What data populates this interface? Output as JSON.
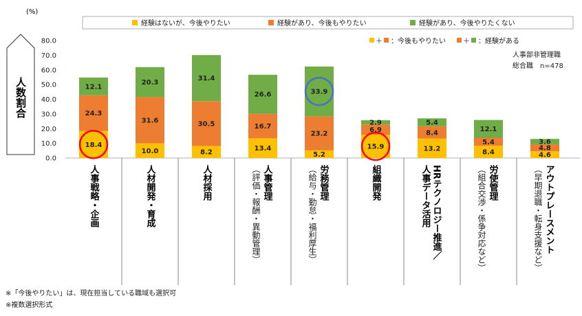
{
  "chart_data": {
    "type": "bar",
    "stacked": true,
    "ylabel_unit": "(%)",
    "ylabel": "人数割合",
    "ylim": [
      0,
      80
    ],
    "yticks": [
      "0.0",
      "10.0",
      "20.0",
      "30.0",
      "40.0",
      "50.0",
      "60.0",
      "70.0",
      "80.0"
    ],
    "categories": [
      {
        "label": "人事戦略・企画",
        "sub": ""
      },
      {
        "label": "人材開発・育成",
        "sub": ""
      },
      {
        "label": "人材採用",
        "sub": ""
      },
      {
        "label": "人事管理",
        "sub": "（評価・報酬・異動管理）"
      },
      {
        "label": "労務管理",
        "sub": "（給与・勤怠・福利厚生）"
      },
      {
        "label": "組織開発",
        "sub": ""
      },
      {
        "label": "HRテクノロジー推進／",
        "label2": "人事データ活用",
        "sub": ""
      },
      {
        "label": "労使管理",
        "sub": "（組合交渉・係争対応など）"
      },
      {
        "label": "アウトプレースメント",
        "sub": "（早期退職・転身支援など）"
      }
    ],
    "series": [
      {
        "name": "経験はないが、今後やりたい",
        "color": "#FFC000",
        "values": [
          18.4,
          10.0,
          8.2,
          13.4,
          5.2,
          15.9,
          13.2,
          8.4,
          4.6
        ]
      },
      {
        "name": "経験があり、今後もやりたい",
        "color": "#ED7D31",
        "values": [
          24.3,
          31.6,
          30.5,
          16.7,
          23.2,
          6.9,
          8.4,
          5.4,
          4.8
        ]
      },
      {
        "name": "経験があり、今後やりたくない",
        "color": "#70AD47",
        "values": [
          12.1,
          20.3,
          31.4,
          26.6,
          33.9,
          2.9,
          5.4,
          12.1,
          3.6
        ]
      }
    ],
    "highlight_circles": [
      {
        "category_index": 0,
        "series_index": 0,
        "color": "#FF0000"
      },
      {
        "category_index": 5,
        "series_index": 0,
        "color": "#FF0000"
      },
      {
        "category_index": 4,
        "series_index": 2,
        "color": "#4472C4"
      }
    ],
    "legend_position": "top",
    "legend2": {
      "a_text": "：今後もやりたい",
      "b_text": "：経験がある",
      "plus": "＋"
    },
    "sample_note": {
      "line1": "人事部非管理職",
      "line2": "総合職　n=478"
    }
  },
  "footnotes": [
    "※「今後やりたい」は、現在担当している職域も選択可",
    "※複数選択形式"
  ]
}
